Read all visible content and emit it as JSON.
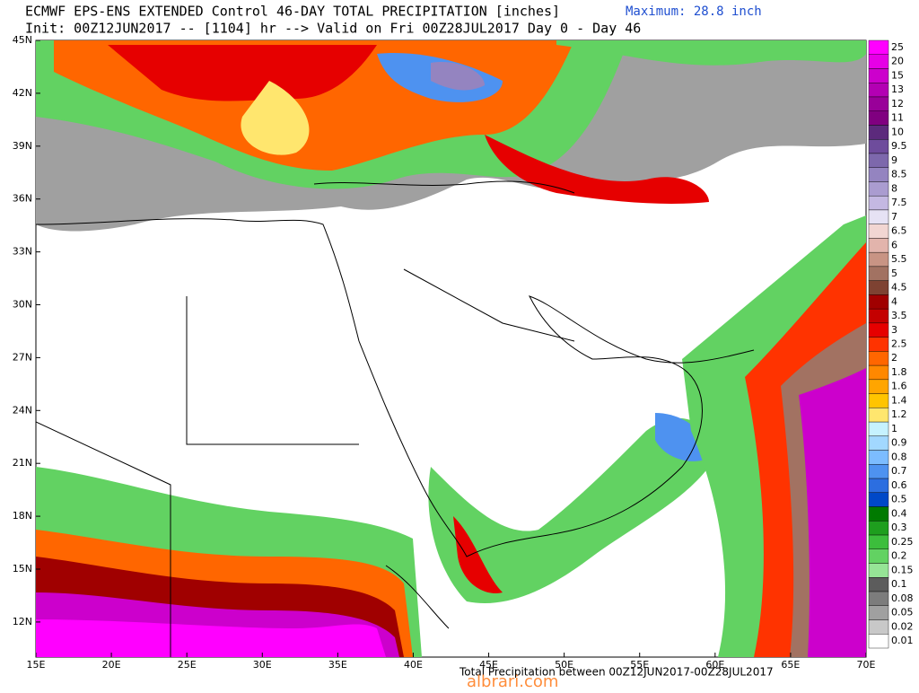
{
  "header": {
    "line1": "ECMWF EPS-ENS EXTENDED Control 46-DAY TOTAL PRECIPITATION [inches]",
    "line2": "Init: 00Z12JUN2017 -- [1104] hr --> Valid on Fri 00Z28JUL2017  Day 0 - Day 46",
    "maximum": "Maximum: 28.8 inch"
  },
  "latitudes": [
    "45N",
    "42N",
    "39N",
    "36N",
    "33N",
    "30N",
    "27N",
    "24N",
    "21N",
    "18N",
    "15N",
    "12N"
  ],
  "longitudes": [
    "15E",
    "20E",
    "25E",
    "30E",
    "35E",
    "40E",
    "45E",
    "50E",
    "55E",
    "60E",
    "65E",
    "70E"
  ],
  "legend": [
    {
      "label": "25",
      "color": "#ff00ff"
    },
    {
      "label": "20",
      "color": "#e600e6"
    },
    {
      "label": "15",
      "color": "#cc00cc"
    },
    {
      "label": "13",
      "color": "#b300b3"
    },
    {
      "label": "12",
      "color": "#990099"
    },
    {
      "label": "11",
      "color": "#800080"
    },
    {
      "label": "10",
      "color": "#5c2a7c"
    },
    {
      "label": "9.5",
      "color": "#6e4c9c"
    },
    {
      "label": "9",
      "color": "#7d68ac"
    },
    {
      "label": "8.5",
      "color": "#9484c0"
    },
    {
      "label": "8",
      "color": "#aa9cd0"
    },
    {
      "label": "7.5",
      "color": "#c4b8e2"
    },
    {
      "label": "7",
      "color": "#e6e2f4"
    },
    {
      "label": "6.5",
      "color": "#f2d6d2"
    },
    {
      "label": "6",
      "color": "#e2b4ac"
    },
    {
      "label": "5.5",
      "color": "#c89484"
    },
    {
      "label": "5",
      "color": "#a27262"
    },
    {
      "label": "4.5",
      "color": "#7e4232"
    },
    {
      "label": "4",
      "color": "#a00000"
    },
    {
      "label": "3.5",
      "color": "#c40000"
    },
    {
      "label": "3",
      "color": "#e60000"
    },
    {
      "label": "2.5",
      "color": "#ff3300"
    },
    {
      "label": "2",
      "color": "#ff6600"
    },
    {
      "label": "1.8",
      "color": "#ff8800"
    },
    {
      "label": "1.6",
      "color": "#ffa500"
    },
    {
      "label": "1.4",
      "color": "#ffc400"
    },
    {
      "label": "1.2",
      "color": "#ffe66e"
    },
    {
      "label": "1",
      "color": "#c6f2ff"
    },
    {
      "label": "0.9",
      "color": "#a2d8ff"
    },
    {
      "label": "0.8",
      "color": "#7cbcff"
    },
    {
      "label": "0.7",
      "color": "#4e92f0"
    },
    {
      "label": "0.6",
      "color": "#2c6ee0"
    },
    {
      "label": "0.5",
      "color": "#0048c8"
    },
    {
      "label": "0.4",
      "color": "#007a00"
    },
    {
      "label": "0.3",
      "color": "#1e9e1e"
    },
    {
      "label": "0.25",
      "color": "#3cbe3c"
    },
    {
      "label": "0.2",
      "color": "#62d262"
    },
    {
      "label": "0.15",
      "color": "#96e496"
    },
    {
      "label": "0.1",
      "color": "#5c5c5c"
    },
    {
      "label": "0.08",
      "color": "#7c7c7c"
    },
    {
      "label": "0.05",
      "color": "#a0a0a0"
    },
    {
      "label": "0.02",
      "color": "#c8c8c8"
    },
    {
      "label": "0.01",
      "color": "#ffffff"
    }
  ],
  "footer": "Total Precipitation between 00Z12JUN2017-00Z28JUL2017",
  "watermark": "albrari.com"
}
